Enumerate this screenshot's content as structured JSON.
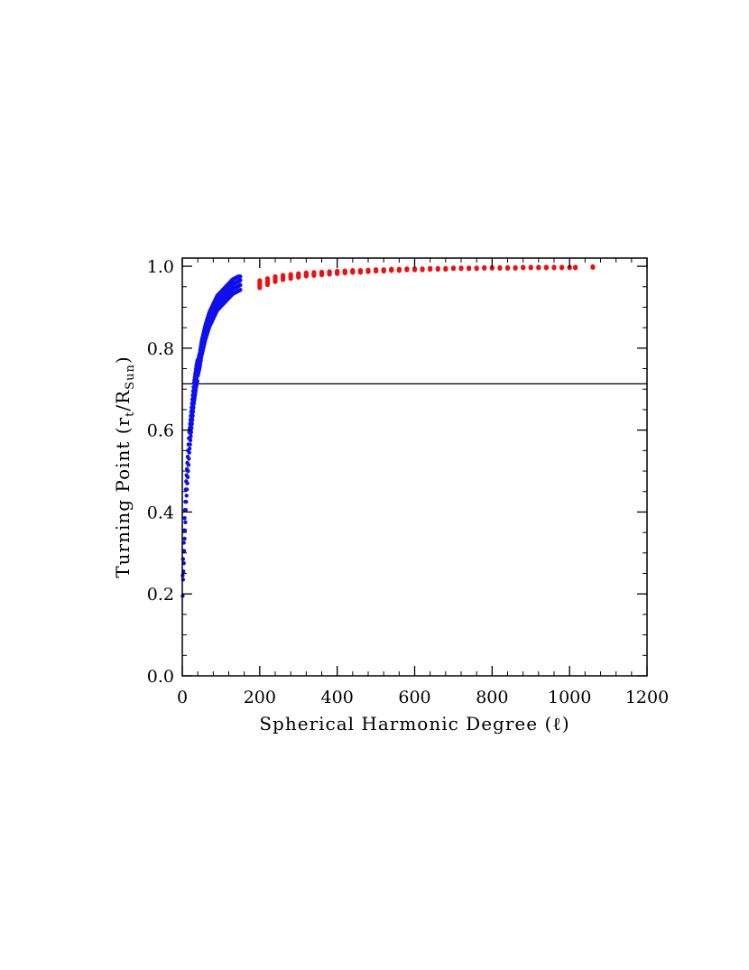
{
  "chart_data": {
    "type": "scatter",
    "title": "",
    "xlabel": "Spherical Harmonic Degree (ℓ)",
    "ylabel": {
      "prefix": "Turning Point (r",
      "sub1": "t",
      "middle": "/R",
      "sub2": "Sun",
      "suffix": ")"
    },
    "xlim": [
      0,
      1200
    ],
    "ylim": [
      0.0,
      1.02
    ],
    "x_ticks": [
      0,
      200,
      400,
      600,
      800,
      1000,
      1200
    ],
    "y_ticks": [
      0.0,
      0.2,
      0.4,
      0.6,
      0.8,
      1.0
    ],
    "x_tick_labels": [
      "0",
      "200",
      "400",
      "600",
      "800",
      "1000",
      "1200"
    ],
    "y_tick_labels": [
      "0.0",
      "0.2",
      "0.4",
      "0.6",
      "0.8",
      "1.0"
    ],
    "grid": false,
    "reference_line": {
      "y": 0.713,
      "color": "#000000"
    },
    "series": [
      {
        "color": "#1010ee",
        "x_range": [
          1,
          150
        ],
        "points": [
          [
            1,
            0.22
          ],
          [
            2,
            0.26
          ],
          [
            4,
            0.3
          ],
          [
            5,
            0.33
          ],
          [
            6,
            0.36
          ],
          [
            8,
            0.4
          ],
          [
            9,
            0.43
          ],
          [
            10,
            0.45
          ],
          [
            12,
            0.48
          ],
          [
            14,
            0.51
          ],
          [
            16,
            0.54
          ],
          [
            18,
            0.57
          ],
          [
            20,
            0.59
          ],
          [
            22,
            0.61
          ],
          [
            24,
            0.63
          ],
          [
            26,
            0.65
          ],
          [
            28,
            0.67
          ],
          [
            30,
            0.69
          ],
          [
            33,
            0.71
          ],
          [
            36,
            0.73
          ],
          [
            40,
            0.75
          ],
          [
            45,
            0.77
          ],
          [
            50,
            0.8
          ],
          [
            55,
            0.82
          ],
          [
            60,
            0.84
          ],
          [
            70,
            0.87
          ],
          [
            80,
            0.89
          ],
          [
            90,
            0.91
          ],
          [
            100,
            0.92
          ],
          [
            110,
            0.93
          ],
          [
            120,
            0.94
          ],
          [
            130,
            0.95
          ],
          [
            140,
            0.955
          ],
          [
            150,
            0.96
          ]
        ]
      },
      {
        "color": "#ee1010",
        "points": [
          [
            200,
            0.965
          ],
          [
            220,
            0.97
          ],
          [
            240,
            0.975
          ],
          [
            260,
            0.978
          ],
          [
            280,
            0.98
          ],
          [
            300,
            0.982
          ],
          [
            320,
            0.984
          ],
          [
            340,
            0.985
          ],
          [
            360,
            0.986
          ],
          [
            380,
            0.987
          ],
          [
            400,
            0.988
          ],
          [
            420,
            0.989
          ],
          [
            440,
            0.99
          ],
          [
            460,
            0.99
          ],
          [
            480,
            0.991
          ],
          [
            500,
            0.992
          ],
          [
            520,
            0.992
          ],
          [
            540,
            0.993
          ],
          [
            560,
            0.993
          ],
          [
            580,
            0.994
          ],
          [
            600,
            0.994
          ],
          [
            620,
            0.994
          ],
          [
            640,
            0.995
          ],
          [
            660,
            0.995
          ],
          [
            680,
            0.995
          ],
          [
            700,
            0.996
          ],
          [
            720,
            0.996
          ],
          [
            740,
            0.996
          ],
          [
            760,
            0.996
          ],
          [
            780,
            0.997
          ],
          [
            800,
            0.997
          ],
          [
            820,
            0.997
          ],
          [
            840,
            0.997
          ],
          [
            860,
            0.997
          ],
          [
            880,
            0.998
          ],
          [
            900,
            0.998
          ],
          [
            920,
            0.998
          ],
          [
            940,
            0.998
          ],
          [
            960,
            0.998
          ],
          [
            980,
            0.998
          ],
          [
            1000,
            0.998
          ],
          [
            1015,
            0.998
          ],
          [
            1060,
            0.999
          ]
        ]
      }
    ]
  }
}
